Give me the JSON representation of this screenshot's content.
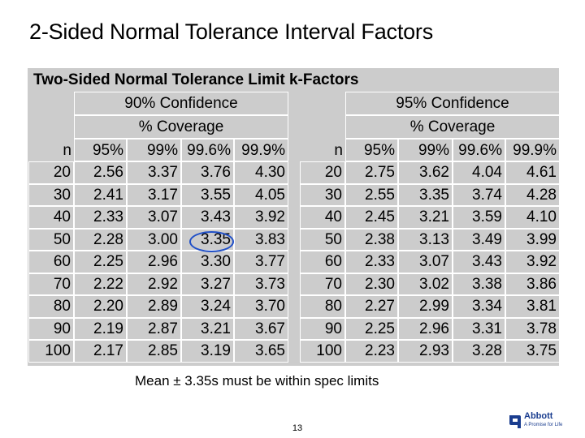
{
  "slide": {
    "title": "2-Sided Normal Tolerance Interval Factors",
    "note": "Mean ± 3.35s must be within spec limits",
    "page_number": "13"
  },
  "table": {
    "caption": "Two-Sided Normal Tolerance Limit k-Factors",
    "n_header": "n",
    "coverage_label": "% Coverage",
    "coverage_columns": [
      "95%",
      "99%",
      "99.6%",
      "99.9%"
    ],
    "groups": [
      {
        "confidence_label": "90% Confidence",
        "rows": [
          {
            "n": "20",
            "values": [
              "2.56",
              "3.37",
              "3.76",
              "4.30"
            ]
          },
          {
            "n": "30",
            "values": [
              "2.41",
              "3.17",
              "3.55",
              "4.05"
            ]
          },
          {
            "n": "40",
            "values": [
              "2.33",
              "3.07",
              "3.43",
              "3.92"
            ]
          },
          {
            "n": "50",
            "values": [
              "2.28",
              "3.00",
              "3.35",
              "3.83"
            ]
          },
          {
            "n": "60",
            "values": [
              "2.25",
              "2.96",
              "3.30",
              "3.77"
            ]
          },
          {
            "n": "70",
            "values": [
              "2.22",
              "2.92",
              "3.27",
              "3.73"
            ]
          },
          {
            "n": "80",
            "values": [
              "2.20",
              "2.89",
              "3.24",
              "3.70"
            ]
          },
          {
            "n": "90",
            "values": [
              "2.19",
              "2.87",
              "3.21",
              "3.67"
            ]
          },
          {
            "n": "100",
            "values": [
              "2.17",
              "2.85",
              "3.19",
              "3.65"
            ]
          }
        ]
      },
      {
        "confidence_label": "95% Confidence",
        "rows": [
          {
            "n": "20",
            "values": [
              "2.75",
              "3.62",
              "4.04",
              "4.61"
            ]
          },
          {
            "n": "30",
            "values": [
              "2.55",
              "3.35",
              "3.74",
              "4.28"
            ]
          },
          {
            "n": "40",
            "values": [
              "2.45",
              "3.21",
              "3.59",
              "4.10"
            ]
          },
          {
            "n": "50",
            "values": [
              "2.38",
              "3.13",
              "3.49",
              "3.99"
            ]
          },
          {
            "n": "60",
            "values": [
              "2.33",
              "3.07",
              "3.43",
              "3.92"
            ]
          },
          {
            "n": "70",
            "values": [
              "2.30",
              "3.02",
              "3.38",
              "3.86"
            ]
          },
          {
            "n": "80",
            "values": [
              "2.27",
              "2.99",
              "3.34",
              "3.81"
            ]
          },
          {
            "n": "90",
            "values": [
              "2.25",
              "2.96",
              "3.31",
              "3.78"
            ]
          },
          {
            "n": "100",
            "values": [
              "2.23",
              "2.93",
              "3.28",
              "3.75"
            ]
          }
        ]
      }
    ],
    "highlight": {
      "group": 0,
      "row": 3,
      "column": 2,
      "color": "#1f4fc8"
    }
  },
  "logo": {
    "name": "Abbott",
    "tagline": "A Promise for Life",
    "color": "#1a3d8f"
  }
}
